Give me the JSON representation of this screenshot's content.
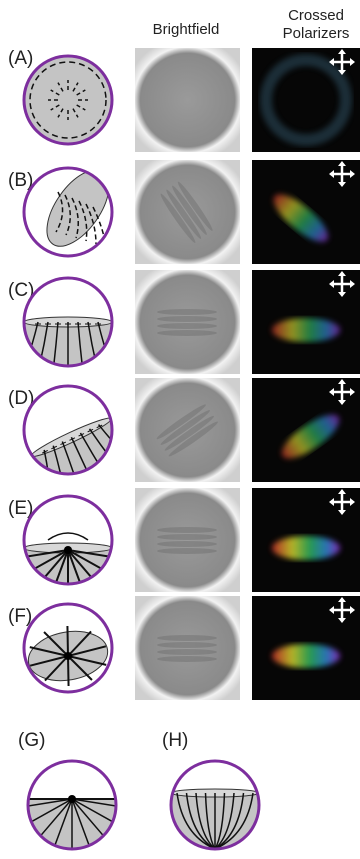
{
  "header": {
    "brightfield": "Brightfield",
    "crossed": [
      "Crossed",
      "Polarizers"
    ]
  },
  "panels": [
    {
      "label": "(A)"
    },
    {
      "label": "(B)"
    },
    {
      "label": "(C)"
    },
    {
      "label": "(D)"
    },
    {
      "label": "(E)"
    },
    {
      "label": "(F)"
    },
    {
      "label": "(G)"
    },
    {
      "label": "(H)"
    }
  ]
}
